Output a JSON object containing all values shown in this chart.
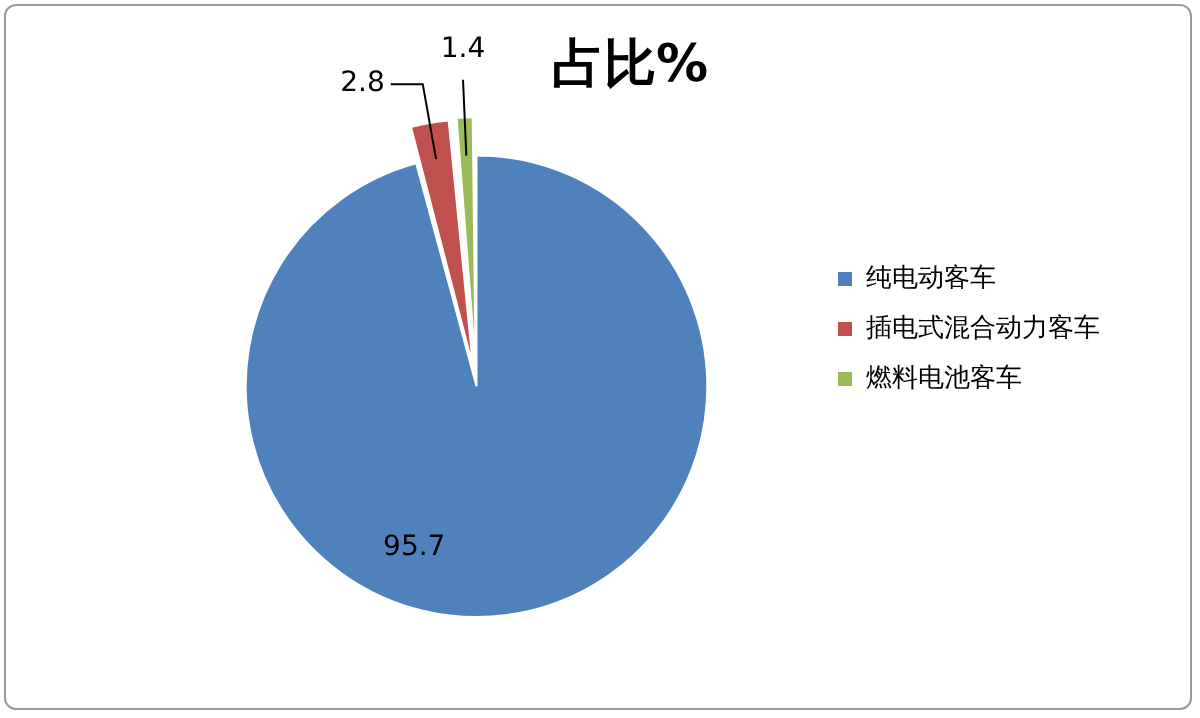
{
  "chart_data": {
    "type": "pie",
    "title": "占比%",
    "categories": [
      "纯电动客车",
      "插电式混合动力客车",
      "燃料电池客车"
    ],
    "values": [
      95.7,
      2.8,
      1.4
    ],
    "colors": [
      "#4f81bd",
      "#c0504d",
      "#9bbb59"
    ],
    "legend": "right",
    "data_labels": true
  }
}
